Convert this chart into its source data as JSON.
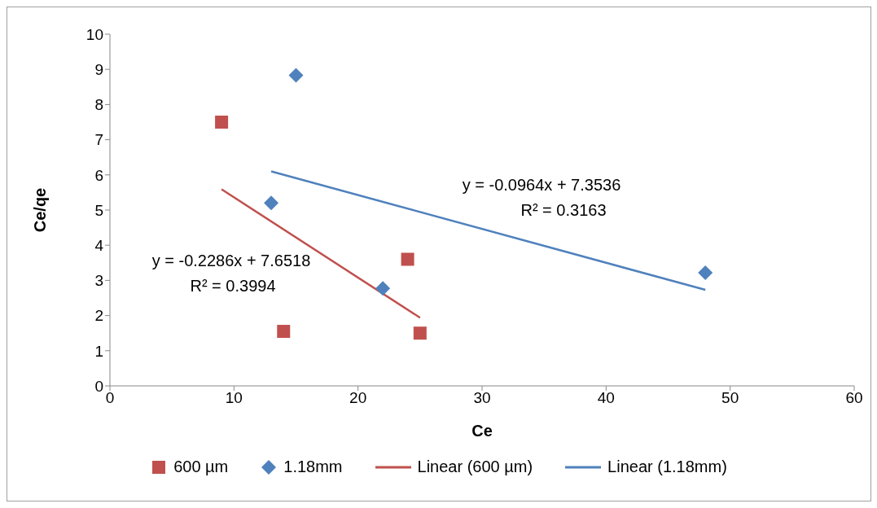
{
  "chart_data": {
    "type": "scatter",
    "xlabel": "Ce",
    "ylabel": "Ce/qe",
    "xlim": [
      0,
      60
    ],
    "xticks": [
      0,
      10,
      20,
      30,
      40,
      50,
      60
    ],
    "ylim": [
      0,
      10
    ],
    "yticks": [
      0,
      1,
      2,
      3,
      4,
      5,
      6,
      7,
      8,
      9,
      10
    ],
    "grid": false,
    "legend": "bottom",
    "series": [
      {
        "name": "600 µm",
        "marker": "square",
        "color": "#c0504d",
        "x": [
          9,
          14,
          24,
          25
        ],
        "values": [
          7.5,
          1.55,
          3.6,
          1.5
        ]
      },
      {
        "name": "1.18mm",
        "marker": "diamond",
        "color": "#4f81bd",
        "x": [
          13,
          15,
          22,
          48
        ],
        "values": [
          5.2,
          8.83,
          2.77,
          3.22
        ]
      },
      {
        "name": "Linear (600 µm)",
        "type": "line",
        "marker": "none",
        "line_style": "solid",
        "color": "#c0504d",
        "x": [
          9,
          25
        ],
        "values": [
          5.59,
          1.94
        ]
      },
      {
        "name": "Linear (1.18mm)",
        "type": "line",
        "marker": "none",
        "line_style": "solid",
        "color": "#4f81bd",
        "x": [
          13,
          48
        ],
        "values": [
          6.1,
          2.73
        ]
      }
    ],
    "annotations": [
      "y = -0.2286x + 7.6518",
      "R² = 0.3994",
      "y = -0.0964x + 7.3536",
      "R² = 0.3163"
    ]
  }
}
